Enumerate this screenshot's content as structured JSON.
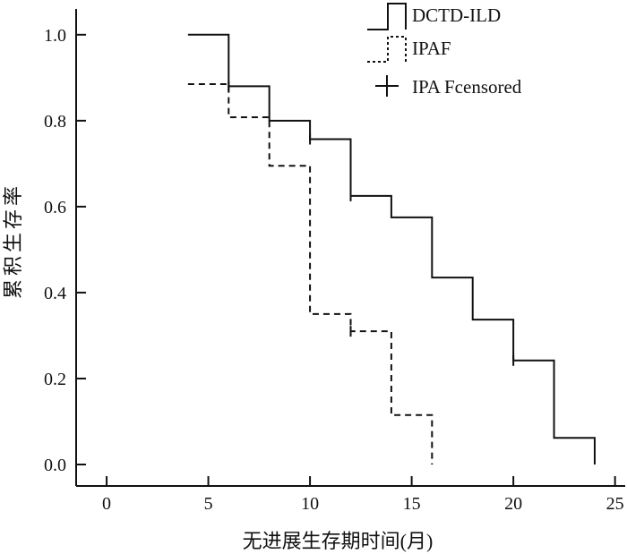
{
  "chart_data": {
    "type": "line",
    "step": true,
    "xlabel": "无进展生存期时间(月)",
    "ylabel": "累积生存率",
    "xlim": [
      -1.5,
      25.5
    ],
    "ylim": [
      -0.05,
      1.06
    ],
    "xticks": [
      0,
      5,
      10,
      15,
      20,
      25
    ],
    "xtick_labels": [
      "0",
      "5",
      "10",
      "15",
      "20",
      "25"
    ],
    "yticks": [
      0.0,
      0.2,
      0.4,
      0.6,
      0.8,
      1.0
    ],
    "ytick_labels": [
      "0.0",
      "0.2",
      "0.4",
      "0.6",
      "0.8",
      "1.0"
    ],
    "grid": false,
    "legend_position": "top-right",
    "legend": [
      "DCTD-ILD",
      "IPAF",
      "IPA Fcensored"
    ],
    "series": [
      {
        "name": "DCTD-ILD",
        "style": "solid",
        "x": [
          4,
          6,
          8,
          10,
          12,
          14,
          16,
          18,
          20,
          22,
          24
        ],
        "y": [
          1.0,
          0.88,
          0.8,
          0.757,
          0.625,
          0.575,
          0.435,
          0.337,
          0.242,
          0.062,
          0.0
        ]
      },
      {
        "name": "IPAF",
        "style": "dashed",
        "x": [
          4,
          6,
          8,
          10,
          12,
          14,
          16
        ],
        "y": [
          0.885,
          0.808,
          0.695,
          0.35,
          0.31,
          0.115,
          0.0
        ]
      }
    ],
    "censored": [
      {
        "x": 6,
        "y": 0.88
      },
      {
        "x": 10,
        "y": 0.757
      },
      {
        "x": 12,
        "y": 0.625
      },
      {
        "x": 20,
        "y": 0.242
      },
      {
        "x": 12,
        "y": 0.31
      }
    ]
  }
}
